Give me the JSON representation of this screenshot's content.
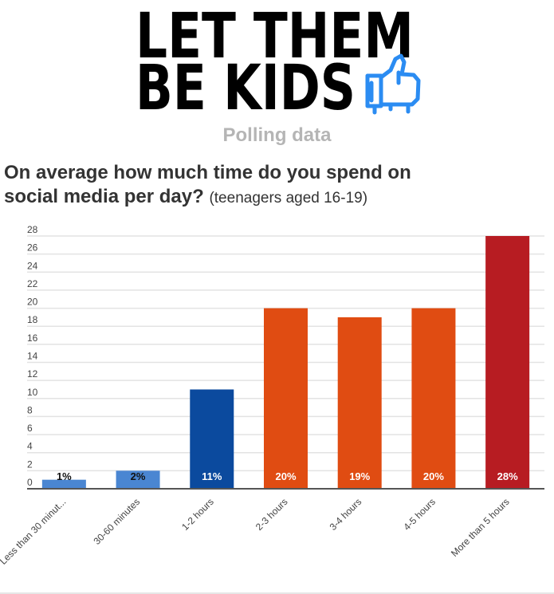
{
  "logo": {
    "line1": "LET THEM",
    "line2": "BE KIDS",
    "icon": "thumbs-up-icon",
    "icon_color": "#2b8cf2"
  },
  "subtitle": "Polling data",
  "question": {
    "line1": "On average how much time do you spend on",
    "line2": "social media per day?",
    "note": "(teenagers aged 16-19)"
  },
  "chart_data": {
    "type": "bar",
    "title": "On average how much time do you spend on social media per day? (teenagers aged 16-19)",
    "xlabel": "",
    "ylabel": "",
    "categories": [
      "Less than 30 minut...",
      "30-60 minutes",
      "1-2 hours",
      "2-3 hours",
      "3-4 hours",
      "4-5 hours",
      "More than 5 hours"
    ],
    "values": [
      1,
      2,
      11,
      20,
      19,
      20,
      28
    ],
    "data_labels": [
      "1%",
      "2%",
      "11%",
      "20%",
      "19%",
      "20%",
      "28%"
    ],
    "bar_colors": [
      "#4a86d2",
      "#4a86d2",
      "#0b4a9e",
      "#e04c12",
      "#e04c12",
      "#e04c12",
      "#b71c22"
    ],
    "label_colors": [
      "#111111",
      "#111111",
      "#ffffff",
      "#ffffff",
      "#ffffff",
      "#ffffff",
      "#ffffff"
    ],
    "ylim": [
      0,
      28
    ],
    "yticks": [
      0,
      2,
      4,
      6,
      8,
      10,
      12,
      14,
      16,
      18,
      20,
      22,
      24,
      26,
      28
    ],
    "grid": true,
    "legend": "none"
  }
}
